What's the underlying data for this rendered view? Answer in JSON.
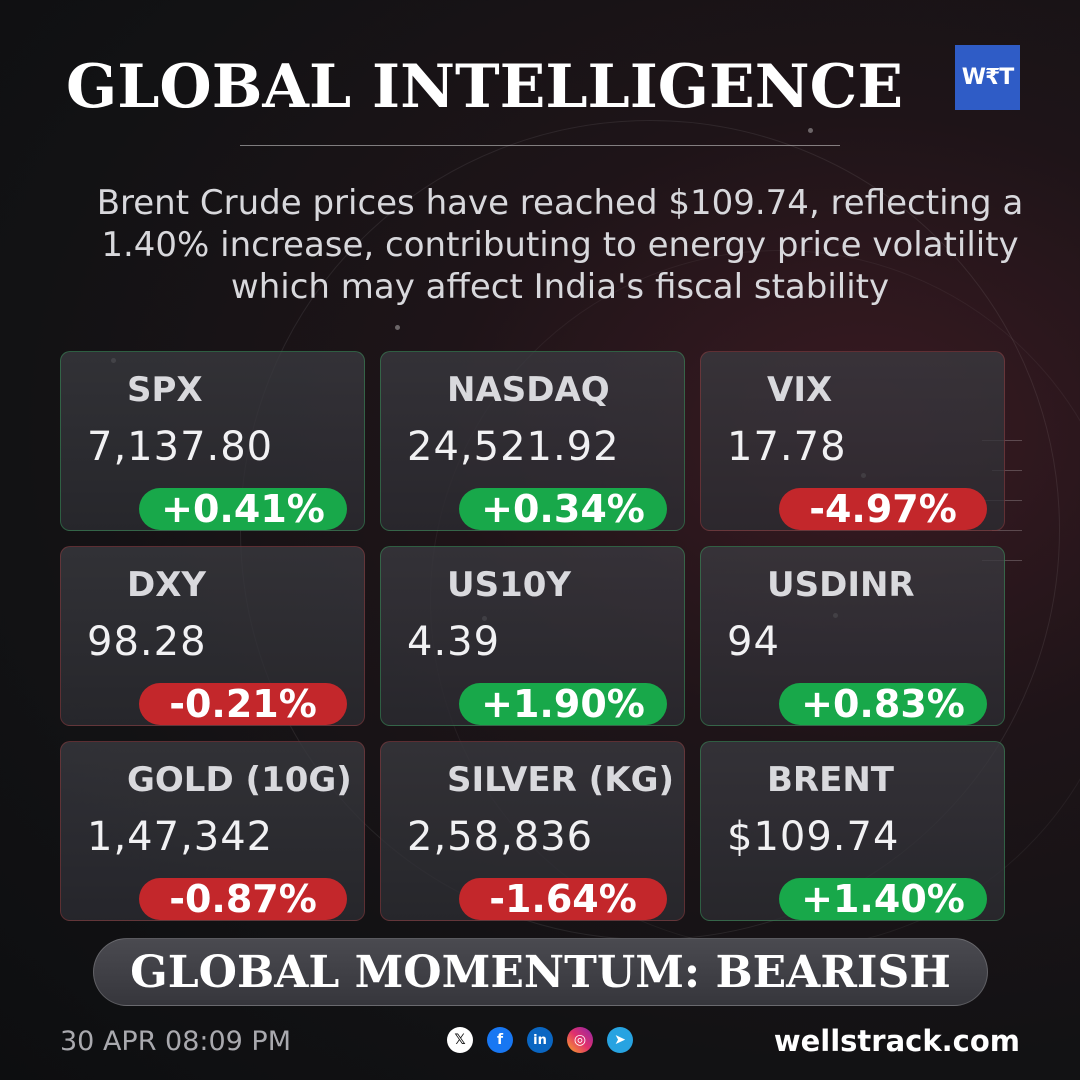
{
  "header": {
    "title": "GLOBAL INTELLIGENCE",
    "logo_text": "W₹T",
    "headline": "Brent Crude prices have reached $109.74, reflecting a 1.40% increase, contributing to energy price volatility which may affect India's fiscal stability"
  },
  "tickers": [
    {
      "name": "SPX",
      "value": "7,137.80",
      "change": "+0.41%",
      "direction": "up"
    },
    {
      "name": "NASDAQ",
      "value": "24,521.92",
      "change": "+0.34%",
      "direction": "up"
    },
    {
      "name": "VIX",
      "value": "17.78",
      "change": "-4.97%",
      "direction": "down"
    },
    {
      "name": "DXY",
      "value": "98.28",
      "change": "-0.21%",
      "direction": "down"
    },
    {
      "name": "US10Y",
      "value": "4.39",
      "change": "+1.90%",
      "direction": "up"
    },
    {
      "name": "USDINR",
      "value": "94",
      "change": "+0.83%",
      "direction": "up"
    },
    {
      "name": "GOLD (10G)",
      "value": "1,47,342",
      "change": "-0.87%",
      "direction": "down"
    },
    {
      "name": "SILVER (KG)",
      "value": "2,58,836",
      "change": "-1.64%",
      "direction": "down"
    },
    {
      "name": "BRENT",
      "value": "$109.74",
      "change": "+1.40%",
      "direction": "up"
    }
  ],
  "momentum": {
    "label": "GLOBAL MOMENTUM: BEARISH"
  },
  "footer": {
    "datetime": "30 APR 08:09 PM",
    "socials": [
      {
        "icon": "x-icon",
        "glyph": "𝕏"
      },
      {
        "icon": "facebook-icon",
        "glyph": "f"
      },
      {
        "icon": "linkedin-icon",
        "glyph": "in"
      },
      {
        "icon": "instagram-icon",
        "glyph": "◎"
      },
      {
        "icon": "telegram-icon",
        "glyph": "➤"
      }
    ],
    "website": "wellstrack.com"
  },
  "colors": {
    "positive": "#18a84a",
    "negative": "#c3272b",
    "logo_bg": "#2f5cc6"
  }
}
